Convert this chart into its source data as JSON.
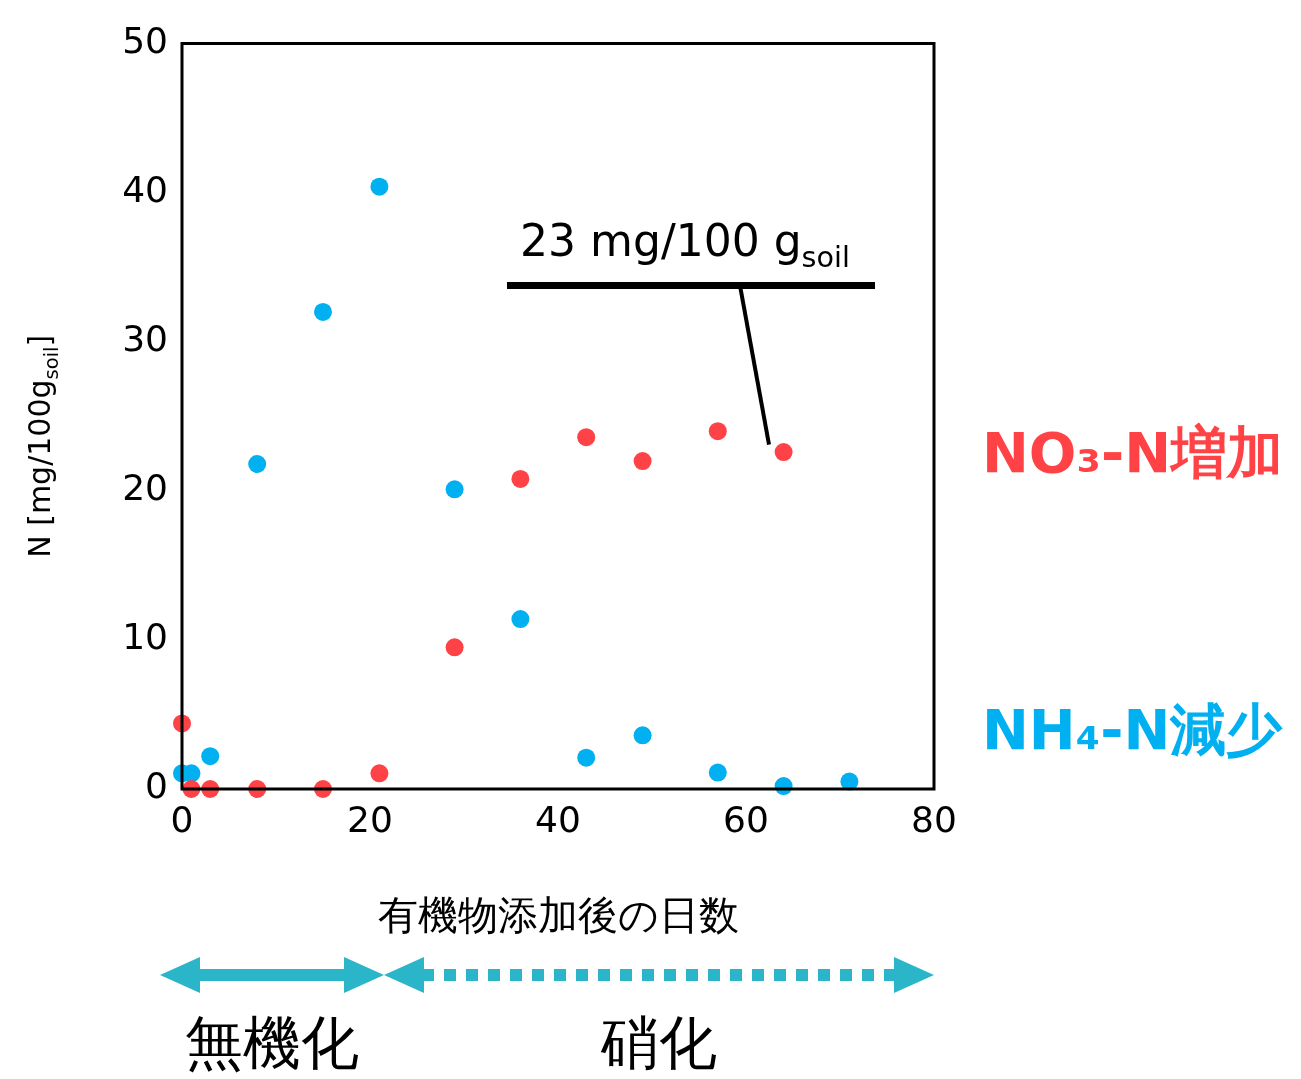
{
  "chart_data": {
    "type": "scatter",
    "xlabel": "有機物添加後の日数",
    "ylabel": "N [mg/100g$_{soil}$]",
    "xlim": [
      0,
      80
    ],
    "xticks": [
      0,
      20,
      40,
      60,
      80
    ],
    "ylim": [
      0,
      50
    ],
    "yticks": [
      0,
      10,
      20,
      30,
      40,
      50
    ],
    "grid": false,
    "marker": "circle",
    "series": [
      {
        "name": "NO₃-N増加",
        "color": "#ff4245",
        "x": [
          0,
          1,
          3,
          8,
          15,
          21,
          29,
          36,
          43,
          49,
          57,
          64
        ],
        "values": [
          4.4,
          0,
          0,
          0,
          0,
          1.05,
          9.5,
          20.8,
          23.6,
          22,
          24,
          22.6
        ]
      },
      {
        "name": "NH₄-N減少",
        "color": "#00b0f0",
        "x": [
          0,
          1,
          3,
          8,
          15,
          21,
          29,
          36,
          43,
          49,
          57,
          64,
          71
        ],
        "values": [
          1.05,
          1.05,
          2.2,
          21.8,
          32,
          40.4,
          20.1,
          11.4,
          2.1,
          3.6,
          1.1,
          0.2,
          0.5
        ]
      }
    ],
    "annotations": [
      "23 mg/100 g$_{soil}$",
      "無機化",
      "硝化"
    ]
  }
}
